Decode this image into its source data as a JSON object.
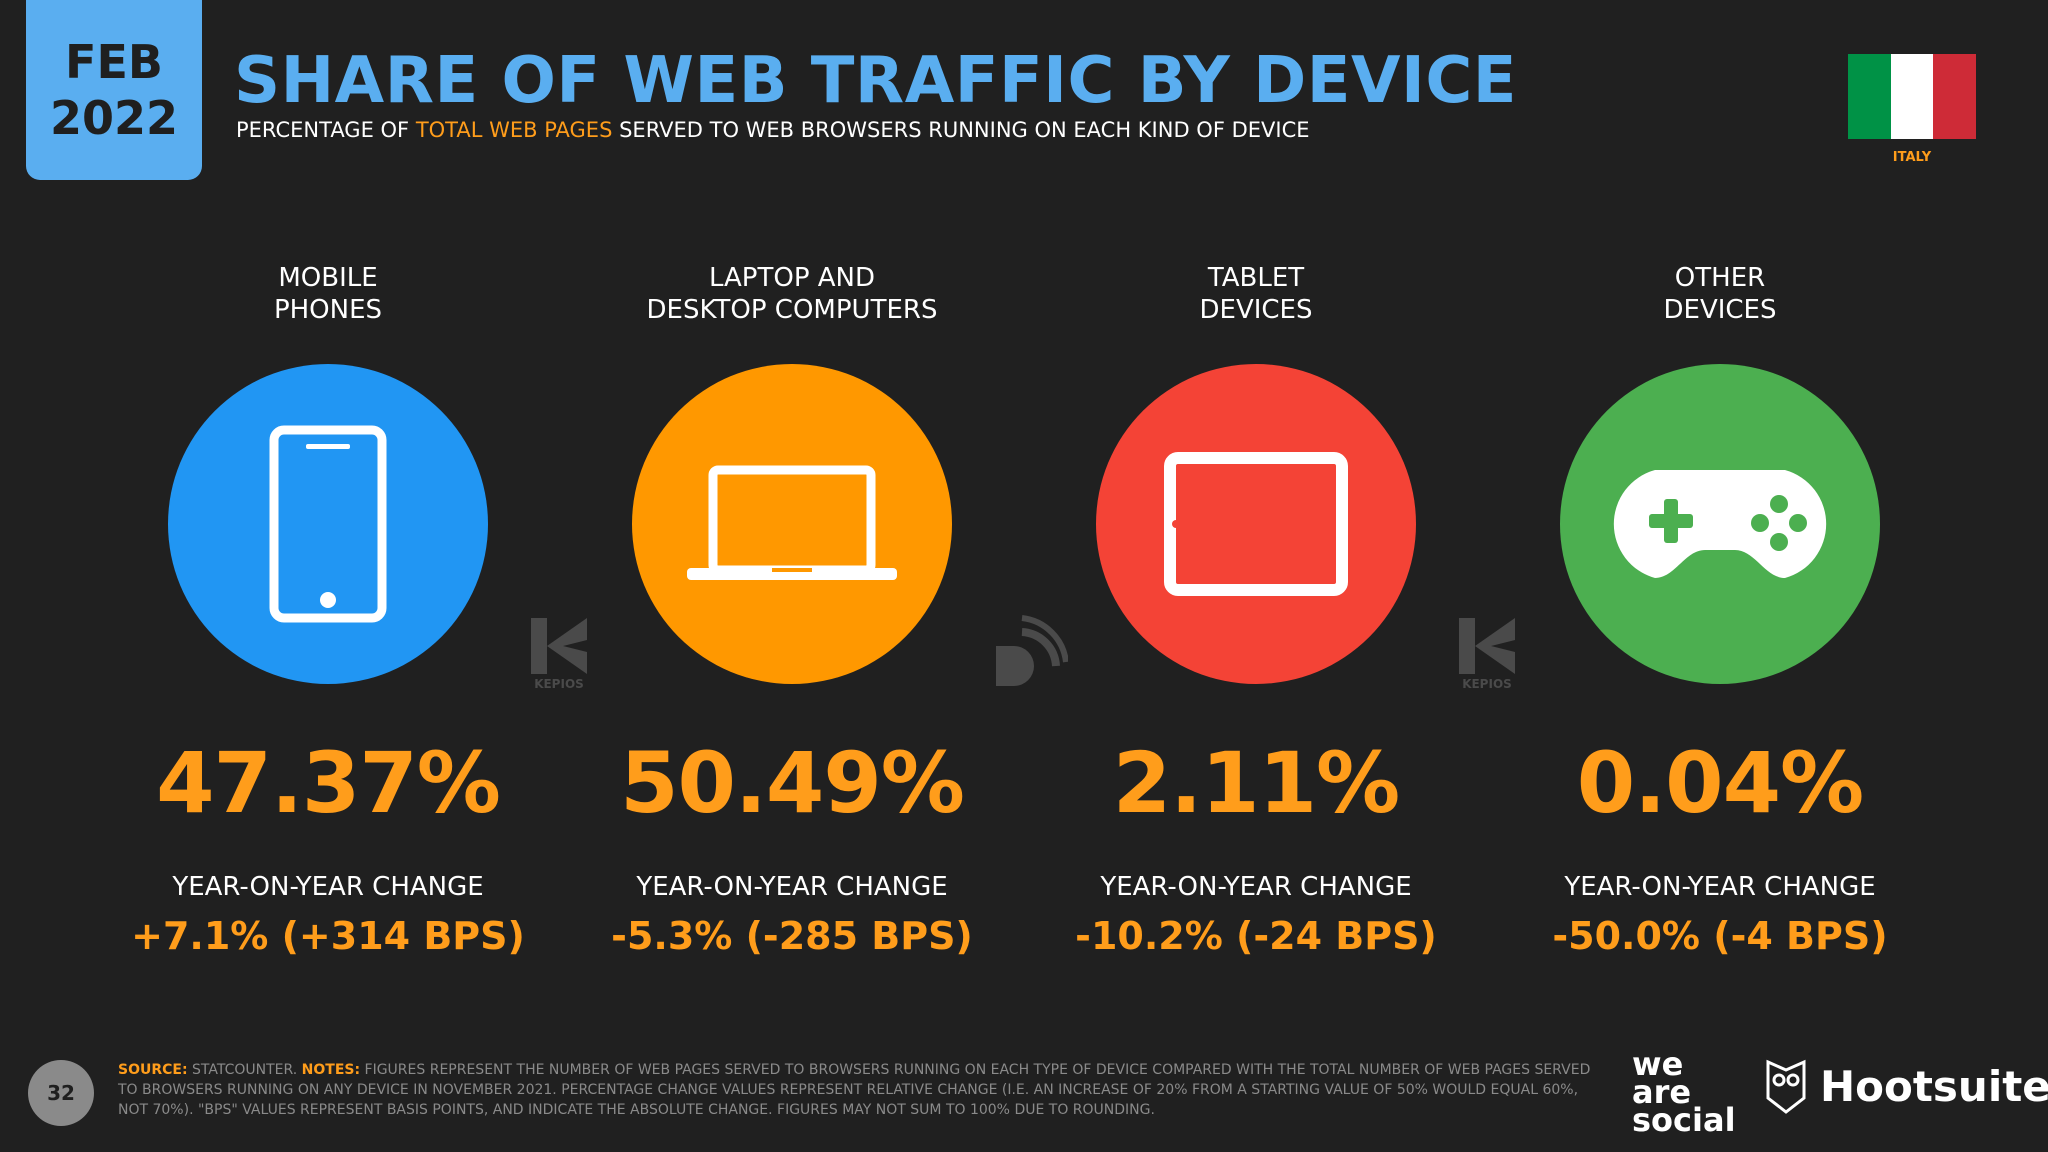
{
  "header": {
    "date_month": "FEB",
    "date_year": "2022",
    "title": "SHARE OF WEB TRAFFIC BY DEVICE",
    "subtitle_pre": "PERCENTAGE OF ",
    "subtitle_highlight": "TOTAL WEB PAGES",
    "subtitle_post": " SERVED TO WEB BROWSERS RUNNING ON EACH KIND OF DEVICE"
  },
  "country": {
    "label": "ITALY",
    "flag_colors": [
      "#009246",
      "#ffffff",
      "#ce2b37"
    ]
  },
  "devices": [
    {
      "label_line1": "MOBILE",
      "label_line2": "PHONES",
      "icon": "mobile-phone-icon",
      "color": "#2196f3",
      "share": "47.37%",
      "yoy_label": "YEAR-ON-YEAR CHANGE",
      "yoy_value": "+7.1% (+314 BPS)"
    },
    {
      "label_line1": "LAPTOP AND",
      "label_line2": "DESKTOP COMPUTERS",
      "icon": "laptop-icon",
      "color": "#ff9800",
      "share": "50.49%",
      "yoy_label": "YEAR-ON-YEAR CHANGE",
      "yoy_value": "-5.3% (-285 BPS)"
    },
    {
      "label_line1": "TABLET",
      "label_line2": "DEVICES",
      "icon": "tablet-icon",
      "color": "#f44336",
      "share": "2.11%",
      "yoy_label": "YEAR-ON-YEAR CHANGE",
      "yoy_value": "-10.2% (-24 BPS)"
    },
    {
      "label_line1": "OTHER",
      "label_line2": "DEVICES",
      "icon": "gamepad-icon",
      "color": "#4caf50",
      "share": "0.04%",
      "yoy_label": "YEAR-ON-YEAR CHANGE",
      "yoy_value": "-50.0% (-4 BPS)"
    }
  ],
  "watermarks": {
    "kepios_label": "KEPIOS"
  },
  "footer": {
    "page_number": "32",
    "source_label": "SOURCE:",
    "source_text": " STATCOUNTER. ",
    "notes_label": "NOTES:",
    "notes_text": " FIGURES REPRESENT THE NUMBER OF WEB PAGES SERVED TO BROWSERS RUNNING ON EACH TYPE OF DEVICE COMPARED WITH THE TOTAL NUMBER OF WEB PAGES SERVED TO BROWSERS RUNNING ON ANY DEVICE IN NOVEMBER 2021. PERCENTAGE CHANGE VALUES REPRESENT RELATIVE CHANGE (I.E. AN INCREASE OF 20% FROM A STARTING VALUE OF 50% WOULD EQUAL 60%, NOT 70%). \"BPS\" VALUES REPRESENT BASIS POINTS, AND INDICATE THE ABSOLUTE CHANGE. FIGURES MAY NOT SUM TO 100% DUE TO ROUNDING.",
    "logo_was_1": "we",
    "logo_was_2": "are",
    "logo_was_3": "social",
    "logo_hootsuite": "Hootsuite"
  }
}
